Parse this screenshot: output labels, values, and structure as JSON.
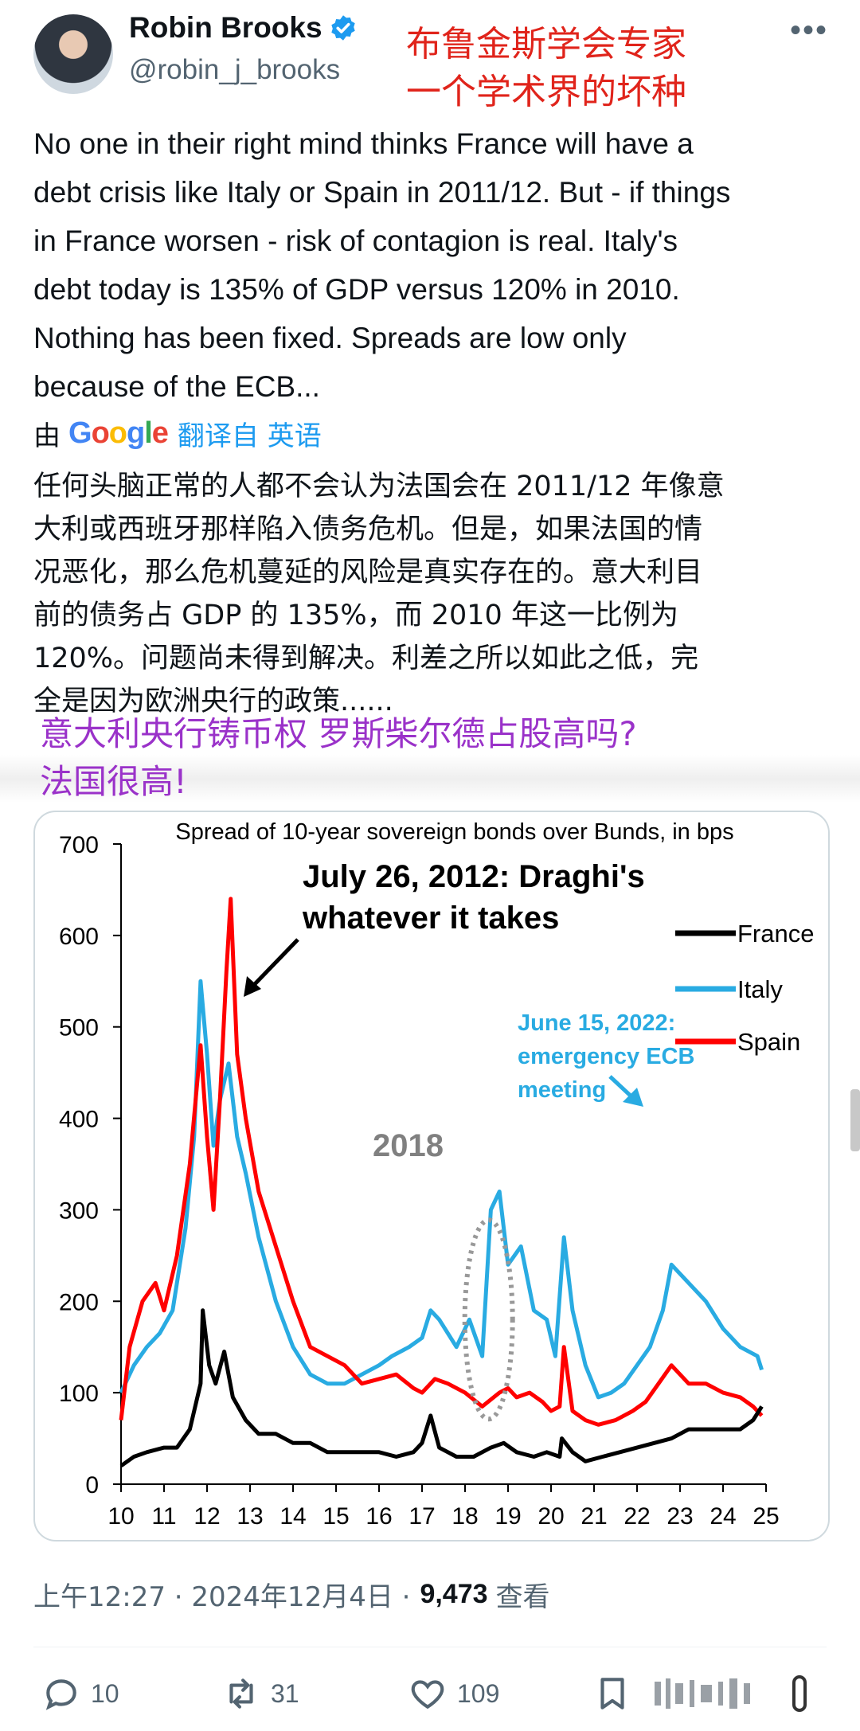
{
  "author": {
    "display_name": "Robin Brooks",
    "handle": "@robin_j_brooks"
  },
  "annotation_red": [
    "布鲁金斯学会专家",
    "一个学术界的坏种"
  ],
  "tweet": {
    "text": "No one in their right mind thinks France will have a\ndebt crisis like Italy or Spain in 2011/12. But - if things\nin France worsen - risk of contagion is real. Italy's\ndebt today is 135% of GDP versus 120% in 2010.\nNothing has been fixed. Spreads are low only\nbecause of the ECB...",
    "translated_by": "由",
    "translator_brand": "Google",
    "translate_label": "翻译自 英语",
    "translated_text": "任何头脑正常的人都不会认为法国会在 2011/12 年像意\n大利或西班牙那样陷入债务危机。但是，如果法国的情\n况恶化，那么危机蔓延的风险是真实存在的。意大利目\n前的债务占 GDP 的 135%，而 2010 年这一比例为\n120%。问题尚未得到解决。利差之所以如此之低，完\n全是因为欧洲央行的政策......",
    "timestamp": "上午12:27 · 2024年12月4日 ·",
    "views": "9,473",
    "views_label": "查看"
  },
  "annotation_purple": "意大利央行铸币权 罗斯柴尔德占股高吗?\n法国很高!",
  "actions": {
    "replies": "10",
    "retweets": "31",
    "likes": "109"
  },
  "colors": {
    "france": "#000000",
    "italy": "#29abe2",
    "spain": "#ff0000",
    "link_blue": "#1d9bf0"
  },
  "chart_data": {
    "type": "line",
    "title": "Spread of 10-year sovereign bonds over Bunds, in bps",
    "xlabel": "",
    "ylabel": "",
    "xlim": [
      10,
      25
    ],
    "ylim": [
      0,
      700
    ],
    "xticks": [
      "10",
      "11",
      "12",
      "13",
      "14",
      "15",
      "16",
      "17",
      "18",
      "19",
      "20",
      "21",
      "22",
      "23",
      "24",
      "25"
    ],
    "yticks": [
      "0",
      "100",
      "200",
      "300",
      "400",
      "500",
      "600",
      "700"
    ],
    "grid": false,
    "legend": "right",
    "annotations": [
      {
        "text": "July 26, 2012: Draghi's",
        "color": "#000000"
      },
      {
        "text": "whatever it takes",
        "color": "#000000"
      },
      {
        "text": "2018",
        "color": "#808080"
      },
      {
        "text": "June 15, 2022:",
        "color": "#29abe2"
      },
      {
        "text": "emergency ECB",
        "color": "#29abe2"
      },
      {
        "text": "meeting",
        "color": "#29abe2"
      }
    ],
    "series": [
      {
        "name": "France",
        "x": [
          10.0,
          10.3,
          10.6,
          11.0,
          11.3,
          11.6,
          11.85,
          11.9,
          12.05,
          12.2,
          12.4,
          12.6,
          12.9,
          13.2,
          13.6,
          14.0,
          14.4,
          14.8,
          15.2,
          15.6,
          16.0,
          16.4,
          16.8,
          17.0,
          17.2,
          17.4,
          17.8,
          18.2,
          18.6,
          18.9,
          19.2,
          19.6,
          19.9,
          20.2,
          20.25,
          20.5,
          20.8,
          21.2,
          21.6,
          22.0,
          22.4,
          22.8,
          23.2,
          23.6,
          24.0,
          24.4,
          24.7,
          24.9
        ],
        "values": [
          20,
          30,
          35,
          40,
          40,
          60,
          110,
          190,
          130,
          110,
          145,
          95,
          70,
          55,
          55,
          45,
          45,
          35,
          35,
          35,
          35,
          30,
          35,
          45,
          75,
          40,
          30,
          30,
          40,
          45,
          35,
          30,
          35,
          30,
          50,
          35,
          25,
          30,
          35,
          40,
          45,
          50,
          60,
          60,
          60,
          60,
          70,
          85
        ]
      },
      {
        "name": "Italy",
        "x": [
          10.0,
          10.3,
          10.6,
          10.9,
          11.2,
          11.5,
          11.7,
          11.85,
          12.0,
          12.15,
          12.3,
          12.5,
          12.7,
          12.9,
          13.2,
          13.6,
          14.0,
          14.4,
          14.8,
          15.2,
          15.6,
          16.0,
          16.3,
          16.7,
          17.0,
          17.2,
          17.4,
          17.8,
          18.1,
          18.4,
          18.6,
          18.8,
          19.0,
          19.3,
          19.6,
          19.9,
          20.1,
          20.3,
          20.5,
          20.8,
          21.1,
          21.4,
          21.7,
          22.0,
          22.3,
          22.6,
          22.8,
          23.2,
          23.6,
          24.0,
          24.4,
          24.8,
          24.9
        ],
        "values": [
          100,
          130,
          150,
          165,
          190,
          280,
          380,
          550,
          470,
          370,
          420,
          460,
          380,
          340,
          270,
          200,
          150,
          120,
          110,
          110,
          120,
          130,
          140,
          150,
          160,
          190,
          180,
          150,
          180,
          140,
          300,
          320,
          240,
          260,
          190,
          180,
          140,
          270,
          190,
          130,
          95,
          100,
          110,
          130,
          150,
          190,
          240,
          220,
          200,
          170,
          150,
          140,
          125
        ]
      },
      {
        "name": "Spain",
        "x": [
          10.0,
          10.2,
          10.5,
          10.8,
          11.0,
          11.3,
          11.6,
          11.85,
          12.0,
          12.15,
          12.3,
          12.45,
          12.55,
          12.7,
          12.9,
          13.2,
          13.6,
          14.0,
          14.4,
          14.8,
          15.2,
          15.6,
          16.0,
          16.4,
          16.8,
          17.0,
          17.3,
          17.6,
          18.0,
          18.4,
          18.8,
          19.0,
          19.2,
          19.5,
          19.8,
          20.0,
          20.2,
          20.3,
          20.5,
          20.8,
          21.1,
          21.5,
          21.9,
          22.2,
          22.5,
          22.8,
          23.2,
          23.6,
          24.0,
          24.4,
          24.7,
          24.9
        ],
        "values": [
          70,
          150,
          200,
          220,
          190,
          250,
          350,
          480,
          380,
          300,
          420,
          560,
          640,
          470,
          400,
          320,
          260,
          200,
          150,
          140,
          130,
          110,
          115,
          120,
          105,
          100,
          115,
          110,
          100,
          85,
          100,
          105,
          95,
          100,
          90,
          80,
          85,
          150,
          80,
          70,
          65,
          70,
          80,
          90,
          110,
          130,
          110,
          110,
          100,
          95,
          85,
          75
        ]
      }
    ]
  }
}
